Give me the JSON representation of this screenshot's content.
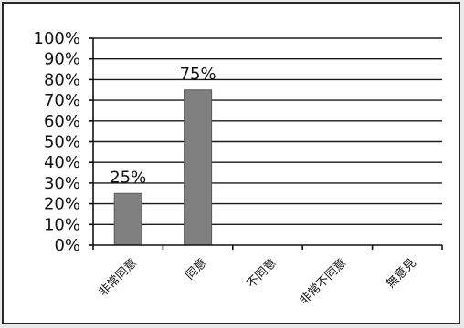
{
  "chart_data": {
    "type": "bar",
    "title": "",
    "xlabel": "",
    "ylabel": "",
    "categories": [
      "非常同意",
      "同意",
      "不同意",
      "非常不同意",
      "無意見"
    ],
    "values": [
      25,
      75,
      0,
      0,
      0
    ],
    "data_labels": [
      "25%",
      null,
      null,
      null,
      null
    ],
    "data_labels_shown": [
      "25%",
      "75%",
      null,
      null,
      null
    ],
    "ylim": [
      0,
      100
    ],
    "yticks": [
      0,
      10,
      20,
      30,
      40,
      50,
      60,
      70,
      80,
      90,
      100
    ],
    "ytick_labels": [
      "0%",
      "10%",
      "20%",
      "30%",
      "40%",
      "50%",
      "60%",
      "70%",
      "80%",
      "90%",
      "100%"
    ],
    "grid": true,
    "legend": "none",
    "bar_color": "#808080"
  }
}
